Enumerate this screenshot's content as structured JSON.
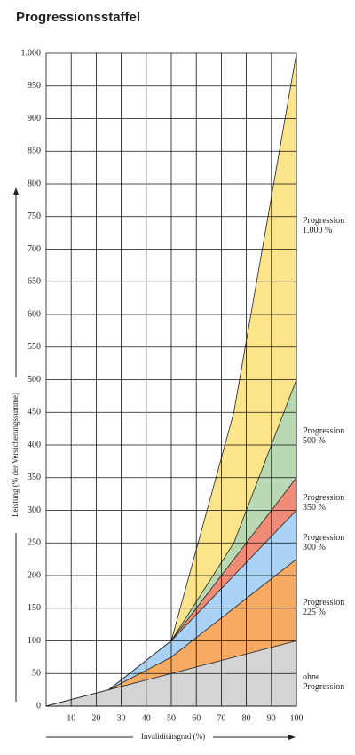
{
  "chart_data": {
    "type": "area",
    "title": "Progressionsstaffel",
    "x_label": "Invaliditätsgrad (%)",
    "y_label": "Leistung (% der Versicherungssumme)",
    "x": [
      0,
      25,
      50,
      75,
      100
    ],
    "series": [
      {
        "name": "Progression 1.000 %",
        "color": "#fbe48a",
        "values": [
          0,
          25,
          100,
          450,
          1000
        ]
      },
      {
        "name": "Progression 500 %",
        "color": "#b8d9b2",
        "values": [
          0,
          25,
          100,
          250,
          500
        ]
      },
      {
        "name": "Progression 350 %",
        "color": "#f08b78",
        "values": [
          0,
          25,
          100,
          225,
          350
        ]
      },
      {
        "name": "Progression 300 %",
        "color": "#aad2f5",
        "values": [
          0,
          25,
          100,
          200,
          300
        ]
      },
      {
        "name": "Progression 225 %",
        "color": "#f7aa62",
        "values": [
          0,
          25,
          75,
          150,
          225
        ]
      },
      {
        "name": "ohne Progression",
        "color": "#d4d4d4",
        "values": [
          0,
          25,
          50,
          75,
          100
        ]
      }
    ],
    "xlim": [
      0,
      100
    ],
    "xticks": [
      10,
      20,
      30,
      40,
      50,
      60,
      70,
      80,
      90,
      100
    ],
    "ylim": [
      0,
      1000
    ],
    "yticks": [
      0,
      50,
      100,
      150,
      200,
      250,
      300,
      350,
      400,
      450,
      500,
      550,
      600,
      650,
      700,
      750,
      800,
      850,
      900,
      950,
      {
        "value": 1000,
        "label": "1.000"
      }
    ],
    "grid": true
  }
}
